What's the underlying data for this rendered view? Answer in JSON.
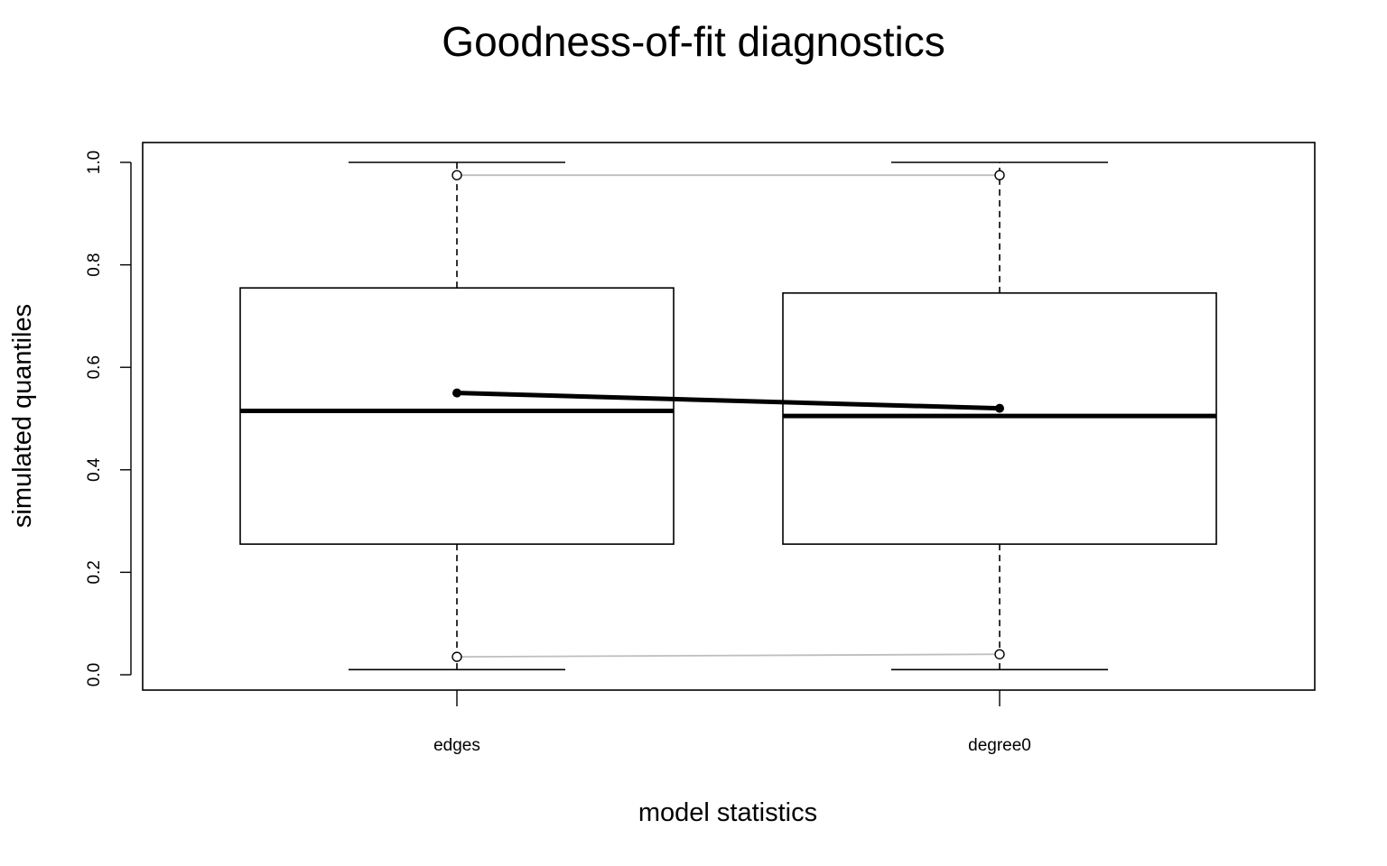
{
  "chart_data": {
    "type": "boxplot",
    "title": "Goodness-of-fit diagnostics",
    "xlabel": "model statistics",
    "ylabel": "simulated quantiles",
    "categories": [
      "edges",
      "degree0"
    ],
    "ylim": [
      -0.03,
      1.04
    ],
    "yticks": [
      "0.0",
      "0.2",
      "0.4",
      "0.6",
      "0.8",
      "1.0"
    ],
    "ytick_values": [
      0.0,
      0.2,
      0.4,
      0.6,
      0.8,
      1.0
    ],
    "boxes": [
      {
        "category": "edges",
        "whisker_low": 0.01,
        "q1": 0.255,
        "median": 0.515,
        "q3": 0.755,
        "whisker_high": 1.0
      },
      {
        "category": "degree0",
        "whisker_low": 0.01,
        "q1": 0.255,
        "median": 0.505,
        "q3": 0.745,
        "whisker_high": 1.0
      }
    ],
    "series": [
      {
        "role": "observed",
        "values": [
          0.55,
          0.52
        ],
        "color": "#000000"
      },
      {
        "role": "upper-band",
        "values": [
          0.975,
          0.975
        ],
        "color": "#bebebe"
      },
      {
        "role": "lower-band",
        "values": [
          0.035,
          0.04
        ],
        "color": "#bebebe"
      }
    ],
    "grid": false,
    "legend": "none"
  }
}
